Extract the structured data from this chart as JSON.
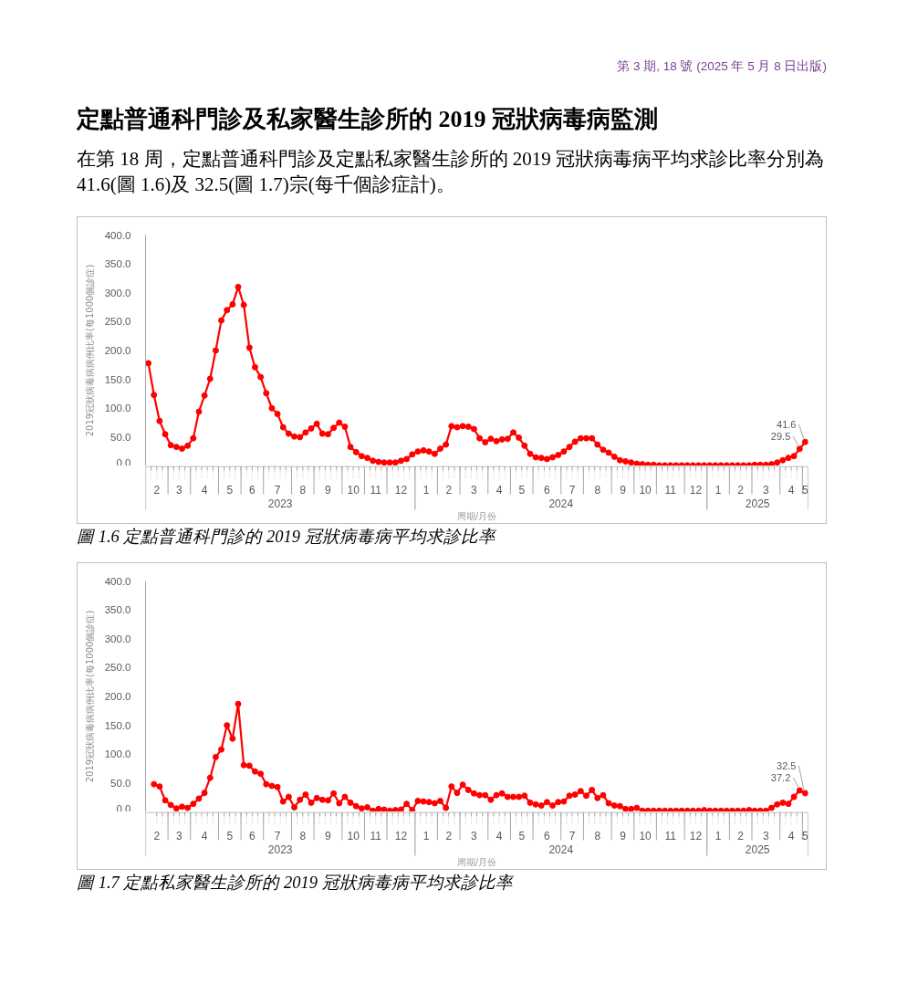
{
  "chart_data": [
    {
      "type": "line",
      "title": "圖 1.6 定點普通科門診的 2019 冠狀病毒病平均求診比率",
      "annotations": [
        "第 3 期, 18 號 (2025 年 5 月 8 日出版)",
        "定點普通科門診及私家醫生診所的 2019 冠狀病毒病監測",
        "在第 18 周，定點普通科門診及定點私家醫生診所的 2019 冠狀病毒病平均求診比率分別為 41.6(圖 1.6)及 32.5(圖 1.7)宗(每千個診症計)。",
        "2023",
        "2024",
        "2025"
      ],
      "xlabel": "周期/月份",
      "ylabel": "2019冠狀病毒病病例比率(每1000個診症)",
      "x": [
        "2023-02-04",
        "2023-02-11",
        "2023-02-18",
        "2023-02-25",
        "2023-03-04",
        "2023-03-11",
        "2023-03-18",
        "2023-03-25",
        "2023-04-01",
        "2023-04-08",
        "2023-04-15",
        "2023-04-22",
        "2023-04-29",
        "2023-05-06",
        "2023-05-13",
        "2023-05-20",
        "2023-05-27",
        "2023-06-03",
        "2023-06-10",
        "2023-06-17",
        "2023-06-24",
        "2023-07-01",
        "2023-07-08",
        "2023-07-15",
        "2023-07-22",
        "2023-07-29",
        "2023-08-05",
        "2023-08-12",
        "2023-08-19",
        "2023-08-26",
        "2023-09-02",
        "2023-09-09",
        "2023-09-16",
        "2023-09-23",
        "2023-09-30",
        "2023-10-07",
        "2023-10-14",
        "2023-10-21",
        "2023-10-28",
        "2023-11-04",
        "2023-11-11",
        "2023-11-18",
        "2023-11-25",
        "2023-12-02",
        "2023-12-09",
        "2023-12-16",
        "2023-12-23",
        "2023-12-30",
        "2024-01-06",
        "2024-01-13",
        "2024-01-20",
        "2024-01-27",
        "2024-02-03",
        "2024-02-10",
        "2024-02-17",
        "2024-02-24",
        "2024-03-02",
        "2024-03-09",
        "2024-03-16",
        "2024-03-23",
        "2024-03-30",
        "2024-04-06",
        "2024-04-13",
        "2024-04-20",
        "2024-04-27",
        "2024-05-04",
        "2024-05-11",
        "2024-05-18",
        "2024-05-25",
        "2024-06-01",
        "2024-06-08",
        "2024-06-15",
        "2024-06-22",
        "2024-06-29",
        "2024-07-06",
        "2024-07-13",
        "2024-07-20",
        "2024-07-27",
        "2024-08-03",
        "2024-08-10",
        "2024-08-17",
        "2024-08-24",
        "2024-08-31",
        "2024-09-07",
        "2024-09-14",
        "2024-09-21",
        "2024-09-28",
        "2024-10-05",
        "2024-10-12",
        "2024-10-19",
        "2024-10-26",
        "2024-11-02",
        "2024-11-09",
        "2024-11-16",
        "2024-11-23",
        "2024-11-30",
        "2024-12-07",
        "2024-12-14",
        "2024-12-21",
        "2024-12-28",
        "2025-01-04",
        "2025-01-11",
        "2025-01-18",
        "2025-01-25",
        "2025-02-01",
        "2025-02-08",
        "2025-02-15",
        "2025-02-22",
        "2025-03-01",
        "2025-03-08",
        "2025-03-15",
        "2025-03-22",
        "2025-03-29",
        "2025-04-05",
        "2025-04-12",
        "2025-04-19",
        "2025-04-26",
        "2025-05-03"
      ],
      "values": [
        178,
        123,
        78,
        55,
        36,
        33,
        30,
        35,
        48,
        94,
        122,
        151,
        200,
        252,
        270,
        280,
        310,
        279,
        205,
        171,
        154,
        126,
        100,
        90,
        67,
        56,
        51,
        50,
        58,
        65,
        73,
        56,
        55,
        66,
        75,
        68,
        33,
        24,
        17,
        14,
        9,
        7,
        6,
        6,
        6,
        9,
        12,
        20,
        25,
        27,
        25,
        21,
        30,
        37,
        69,
        67,
        69,
        68,
        64,
        48,
        41,
        47,
        43,
        46,
        47,
        58,
        49,
        35,
        21,
        15,
        14,
        12,
        15,
        19,
        25,
        33,
        42,
        48,
        48,
        48,
        37,
        28,
        23,
        16,
        10,
        8,
        6,
        4,
        3,
        2,
        2,
        1,
        1,
        1,
        1,
        1,
        1,
        1,
        1,
        1,
        1,
        1,
        1,
        1,
        1,
        1,
        1,
        1,
        2,
        2,
        2,
        3,
        6,
        10,
        14,
        17,
        29.5,
        41.6
      ],
      "value_labels": [
        null,
        null,
        null,
        null,
        null,
        null,
        null,
        null,
        null,
        null,
        null,
        null,
        null,
        null,
        null,
        null,
        null,
        null,
        null,
        null,
        null,
        null,
        null,
        null,
        null,
        null,
        null,
        null,
        null,
        null,
        null,
        null,
        null,
        null,
        null,
        null,
        null,
        null,
        null,
        null,
        null,
        null,
        null,
        null,
        null,
        null,
        null,
        null,
        null,
        null,
        null,
        null,
        null,
        null,
        null,
        null,
        null,
        null,
        null,
        null,
        null,
        null,
        null,
        null,
        null,
        null,
        null,
        null,
        null,
        null,
        null,
        null,
        null,
        null,
        null,
        null,
        null,
        null,
        null,
        null,
        null,
        null,
        null,
        null,
        null,
        null,
        null,
        null,
        null,
        null,
        null,
        null,
        null,
        null,
        null,
        null,
        null,
        null,
        null,
        null,
        null,
        null,
        null,
        null,
        null,
        null,
        null,
        null,
        null,
        null,
        null,
        null,
        null,
        null,
        null,
        null,
        "29.5",
        "41.6"
      ],
      "color": "#ff0000",
      "marker": "circle",
      "line_style": "solid",
      "xlim": [
        "2023-01-31T12:00",
        "2025-05-06T12:00"
      ],
      "xticks": [
        {
          "value": "2023-02-14T12:00",
          "label": "2"
        },
        {
          "value": "2023-02-28T12:00",
          "label": null
        },
        {
          "value": "2023-03-14T12:00",
          "label": "3"
        },
        {
          "value": "2023-03-28T12:00",
          "label": null
        },
        {
          "value": "2023-04-15",
          "label": "4"
        },
        {
          "value": "2023-05-02T12:00",
          "label": null
        },
        {
          "value": "2023-05-16T12:00",
          "label": "5"
        },
        {
          "value": "2023-05-30T12:00",
          "label": null
        },
        {
          "value": "2023-06-13T12:00",
          "label": "6"
        },
        {
          "value": "2023-06-27T12:00",
          "label": null
        },
        {
          "value": "2023-07-15",
          "label": "7"
        },
        {
          "value": "2023-08-01T12:00",
          "label": null
        },
        {
          "value": "2023-08-15T12:00",
          "label": "8"
        },
        {
          "value": "2023-08-29T12:00",
          "label": null
        },
        {
          "value": "2023-09-16",
          "label": "9"
        },
        {
          "value": "2023-10-03T12:00",
          "label": null
        },
        {
          "value": "2023-10-17T12:00",
          "label": "10"
        },
        {
          "value": "2023-10-31T12:00",
          "label": null
        },
        {
          "value": "2023-11-14T12:00",
          "label": "11"
        },
        {
          "value": "2023-11-28T12:00",
          "label": null
        },
        {
          "value": "2023-12-16",
          "label": "12"
        },
        {
          "value": "2024-01-02T12:00",
          "label": null
        },
        {
          "value": "2024-01-16T12:00",
          "label": "1"
        },
        {
          "value": "2024-01-30T12:00",
          "label": null
        },
        {
          "value": "2024-02-13T12:00",
          "label": "2"
        },
        {
          "value": "2024-02-27T12:00",
          "label": null
        },
        {
          "value": "2024-03-16",
          "label": "3"
        },
        {
          "value": "2024-04-02T12:00",
          "label": null
        },
        {
          "value": "2024-04-16T12:00",
          "label": "4"
        },
        {
          "value": "2024-04-30T12:00",
          "label": null
        },
        {
          "value": "2024-05-14T12:00",
          "label": "5"
        },
        {
          "value": "2024-05-28T12:00",
          "label": null
        },
        {
          "value": "2024-06-15",
          "label": "6"
        },
        {
          "value": "2024-07-02T12:00",
          "label": null
        },
        {
          "value": "2024-07-16T12:00",
          "label": "7"
        },
        {
          "value": "2024-07-30T12:00",
          "label": null
        },
        {
          "value": "2024-08-17",
          "label": "8"
        },
        {
          "value": "2024-09-03T12:00",
          "label": null
        },
        {
          "value": "2024-09-17T12:00",
          "label": "9"
        },
        {
          "value": "2024-10-01T12:00",
          "label": null
        },
        {
          "value": "2024-10-15T12:00",
          "label": "10"
        },
        {
          "value": "2024-10-29T12:00",
          "label": null
        },
        {
          "value": "2024-11-16",
          "label": "11"
        },
        {
          "value": "2024-12-03T12:00",
          "label": null
        },
        {
          "value": "2024-12-17T12:00",
          "label": "12"
        },
        {
          "value": "2024-12-31T12:00",
          "label": null
        },
        {
          "value": "2025-01-14T12:00",
          "label": "1"
        },
        {
          "value": "2025-01-28T12:00",
          "label": null
        },
        {
          "value": "2025-02-11T12:00",
          "label": "2"
        },
        {
          "value": "2025-02-25T12:00",
          "label": null
        },
        {
          "value": "2025-03-15",
          "label": "3"
        },
        {
          "value": "2025-04-01T12:00",
          "label": null
        },
        {
          "value": "2025-04-15T12:00",
          "label": "4"
        },
        {
          "value": "2025-04-29T12:00",
          "label": null
        },
        {
          "value": "2025-05-03",
          "label": "5"
        }
      ],
      "ylim": [
        0,
        400
      ],
      "yticks": [
        {
          "value": 0,
          "label": "0.0"
        },
        {
          "value": 50,
          "label": "50.0"
        },
        {
          "value": 100,
          "label": "100.0"
        },
        {
          "value": 150,
          "label": "150.0"
        },
        {
          "value": 200,
          "label": "200.0"
        },
        {
          "value": 250,
          "label": "250.0"
        },
        {
          "value": 300,
          "label": "300.0"
        },
        {
          "value": 350,
          "label": "350.0"
        },
        {
          "value": 400,
          "label": "400.0"
        }
      ]
    },
    {
      "type": "line",
      "title": "圖 1.7 定點私家醫生診所的 2019 冠狀病毒病平均求診比率",
      "annotations": [
        "2023",
        "2024",
        "2025"
      ],
      "xlabel": "周期/月份",
      "ylabel": "2019冠狀病毒病病例比率(每1000個診症)",
      "x": [
        "2023-02-11",
        "2023-02-18",
        "2023-02-25",
        "2023-03-04",
        "2023-03-11",
        "2023-03-18",
        "2023-03-25",
        "2023-04-01",
        "2023-04-08",
        "2023-04-15",
        "2023-04-22",
        "2023-04-29",
        "2023-05-06",
        "2023-05-13",
        "2023-05-20",
        "2023-05-27",
        "2023-06-03",
        "2023-06-10",
        "2023-06-17",
        "2023-06-24",
        "2023-07-01",
        "2023-07-08",
        "2023-07-15",
        "2023-07-22",
        "2023-07-29",
        "2023-08-05",
        "2023-08-12",
        "2023-08-19",
        "2023-08-26",
        "2023-09-02",
        "2023-09-09",
        "2023-09-16",
        "2023-09-23",
        "2023-09-30",
        "2023-10-07",
        "2023-10-14",
        "2023-10-21",
        "2023-10-28",
        "2023-11-04",
        "2023-11-11",
        "2023-11-18",
        "2023-11-25",
        "2023-12-02",
        "2023-12-09",
        "2023-12-16",
        "2023-12-23",
        "2023-12-30",
        "2024-01-06",
        "2024-01-13",
        "2024-01-20",
        "2024-01-27",
        "2024-02-03",
        "2024-02-10",
        "2024-02-17",
        "2024-02-24",
        "2024-03-02",
        "2024-03-09",
        "2024-03-16",
        "2024-03-23",
        "2024-03-30",
        "2024-04-06",
        "2024-04-13",
        "2024-04-20",
        "2024-04-27",
        "2024-05-04",
        "2024-05-11",
        "2024-05-18",
        "2024-05-25",
        "2024-06-01",
        "2024-06-08",
        "2024-06-15",
        "2024-06-22",
        "2024-06-29",
        "2024-07-06",
        "2024-07-13",
        "2024-07-20",
        "2024-07-27",
        "2024-08-03",
        "2024-08-10",
        "2024-08-17",
        "2024-08-24",
        "2024-08-31",
        "2024-09-07",
        "2024-09-14",
        "2024-09-21",
        "2024-09-28",
        "2024-10-05",
        "2024-10-12",
        "2024-10-19",
        "2024-10-26",
        "2024-11-02",
        "2024-11-09",
        "2024-11-16",
        "2024-11-23",
        "2024-11-30",
        "2024-12-07",
        "2024-12-14",
        "2024-12-21",
        "2024-12-28",
        "2025-01-04",
        "2025-01-11",
        "2025-01-18",
        "2025-01-25",
        "2025-02-01",
        "2025-02-08",
        "2025-02-15",
        "2025-02-22",
        "2025-03-01",
        "2025-03-08",
        "2025-03-15",
        "2025-03-22",
        "2025-03-29",
        "2025-04-05",
        "2025-04-12",
        "2025-04-19",
        "2025-04-26",
        "2025-05-03"
      ],
      "values": [
        48,
        44,
        20,
        12,
        6,
        9,
        7,
        14,
        23,
        33,
        59,
        95,
        108,
        150,
        127,
        187,
        81,
        80,
        70,
        66,
        48,
        45,
        43,
        18,
        26,
        8,
        21,
        30,
        16,
        24,
        21,
        20,
        32,
        15,
        26,
        16,
        10,
        6,
        8,
        2,
        5,
        4,
        2,
        3,
        4,
        14,
        3,
        19,
        18,
        17,
        15,
        19,
        7,
        44,
        33,
        47,
        38,
        32,
        29,
        29,
        21,
        29,
        32,
        26,
        26,
        26,
        28,
        16,
        13,
        11,
        17,
        11,
        17,
        18,
        28,
        30,
        36,
        28,
        38,
        24,
        29,
        15,
        11,
        10,
        5,
        5,
        7,
        2,
        2,
        2,
        2,
        2,
        2,
        2,
        2,
        2,
        2,
        2,
        3,
        2,
        2,
        2,
        2,
        2,
        2,
        2,
        3,
        2,
        2,
        2,
        7,
        13,
        16,
        14,
        26,
        37.2,
        32.5
      ],
      "value_labels": [
        null,
        null,
        null,
        null,
        null,
        null,
        null,
        null,
        null,
        null,
        null,
        null,
        null,
        null,
        null,
        null,
        null,
        null,
        null,
        null,
        null,
        null,
        null,
        null,
        null,
        null,
        null,
        null,
        null,
        null,
        null,
        null,
        null,
        null,
        null,
        null,
        null,
        null,
        null,
        null,
        null,
        null,
        null,
        null,
        null,
        null,
        null,
        null,
        null,
        null,
        null,
        null,
        null,
        null,
        null,
        null,
        null,
        null,
        null,
        null,
        null,
        null,
        null,
        null,
        null,
        null,
        null,
        null,
        null,
        null,
        null,
        null,
        null,
        null,
        null,
        null,
        null,
        null,
        null,
        null,
        null,
        null,
        null,
        null,
        null,
        null,
        null,
        null,
        null,
        null,
        null,
        null,
        null,
        null,
        null,
        null,
        null,
        null,
        null,
        null,
        null,
        null,
        null,
        null,
        null,
        null,
        null,
        null,
        null,
        null,
        null,
        null,
        null,
        null,
        null,
        "37.2",
        "32.5"
      ],
      "color": "#ff0000",
      "marker": "circle",
      "line_style": "solid",
      "xlim": [
        "2023-01-31T12:00",
        "2025-05-06T12:00"
      ],
      "xticks": [
        {
          "value": "2023-02-14T12:00",
          "label": "2"
        },
        {
          "value": "2023-02-28T12:00",
          "label": null
        },
        {
          "value": "2023-03-14T12:00",
          "label": "3"
        },
        {
          "value": "2023-03-28T12:00",
          "label": null
        },
        {
          "value": "2023-04-15",
          "label": "4"
        },
        {
          "value": "2023-05-02T12:00",
          "label": null
        },
        {
          "value": "2023-05-16T12:00",
          "label": "5"
        },
        {
          "value": "2023-05-30T12:00",
          "label": null
        },
        {
          "value": "2023-06-13T12:00",
          "label": "6"
        },
        {
          "value": "2023-06-27T12:00",
          "label": null
        },
        {
          "value": "2023-07-15",
          "label": "7"
        },
        {
          "value": "2023-08-01T12:00",
          "label": null
        },
        {
          "value": "2023-08-15T12:00",
          "label": "8"
        },
        {
          "value": "2023-08-29T12:00",
          "label": null
        },
        {
          "value": "2023-09-16",
          "label": "9"
        },
        {
          "value": "2023-10-03T12:00",
          "label": null
        },
        {
          "value": "2023-10-17T12:00",
          "label": "10"
        },
        {
          "value": "2023-10-31T12:00",
          "label": null
        },
        {
          "value": "2023-11-14T12:00",
          "label": "11"
        },
        {
          "value": "2023-11-28T12:00",
          "label": null
        },
        {
          "value": "2023-12-16",
          "label": "12"
        },
        {
          "value": "2024-01-02T12:00",
          "label": null
        },
        {
          "value": "2024-01-16T12:00",
          "label": "1"
        },
        {
          "value": "2024-01-30T12:00",
          "label": null
        },
        {
          "value": "2024-02-13T12:00",
          "label": "2"
        },
        {
          "value": "2024-02-27T12:00",
          "label": null
        },
        {
          "value": "2024-03-16",
          "label": "3"
        },
        {
          "value": "2024-04-02T12:00",
          "label": null
        },
        {
          "value": "2024-04-16T12:00",
          "label": "4"
        },
        {
          "value": "2024-04-30T12:00",
          "label": null
        },
        {
          "value": "2024-05-14T12:00",
          "label": "5"
        },
        {
          "value": "2024-05-28T12:00",
          "label": null
        },
        {
          "value": "2024-06-15",
          "label": "6"
        },
        {
          "value": "2024-07-02T12:00",
          "label": null
        },
        {
          "value": "2024-07-16T12:00",
          "label": "7"
        },
        {
          "value": "2024-07-30T12:00",
          "label": null
        },
        {
          "value": "2024-08-17",
          "label": "8"
        },
        {
          "value": "2024-09-03T12:00",
          "label": null
        },
        {
          "value": "2024-09-17T12:00",
          "label": "9"
        },
        {
          "value": "2024-10-01T12:00",
          "label": null
        },
        {
          "value": "2024-10-15T12:00",
          "label": "10"
        },
        {
          "value": "2024-10-29T12:00",
          "label": null
        },
        {
          "value": "2024-11-16",
          "label": "11"
        },
        {
          "value": "2024-12-03T12:00",
          "label": null
        },
        {
          "value": "2024-12-17T12:00",
          "label": "12"
        },
        {
          "value": "2024-12-31T12:00",
          "label": null
        },
        {
          "value": "2025-01-14T12:00",
          "label": "1"
        },
        {
          "value": "2025-01-28T12:00",
          "label": null
        },
        {
          "value": "2025-02-11T12:00",
          "label": "2"
        },
        {
          "value": "2025-02-25T12:00",
          "label": null
        },
        {
          "value": "2025-03-15",
          "label": "3"
        },
        {
          "value": "2025-04-01T12:00",
          "label": null
        },
        {
          "value": "2025-04-15T12:00",
          "label": "4"
        },
        {
          "value": "2025-04-29T12:00",
          "label": null
        },
        {
          "value": "2025-05-03",
          "label": "5"
        }
      ],
      "ylim": [
        0,
        400
      ],
      "yticks": [
        {
          "value": 0,
          "label": "0.0"
        },
        {
          "value": 50,
          "label": "50.0"
        },
        {
          "value": 100,
          "label": "100.0"
        },
        {
          "value": 150,
          "label": "150.0"
        },
        {
          "value": 200,
          "label": "200.0"
        },
        {
          "value": 250,
          "label": "250.0"
        },
        {
          "value": 300,
          "label": "300.0"
        },
        {
          "value": 350,
          "label": "350.0"
        },
        {
          "value": 400,
          "label": "400.0"
        }
      ]
    }
  ]
}
